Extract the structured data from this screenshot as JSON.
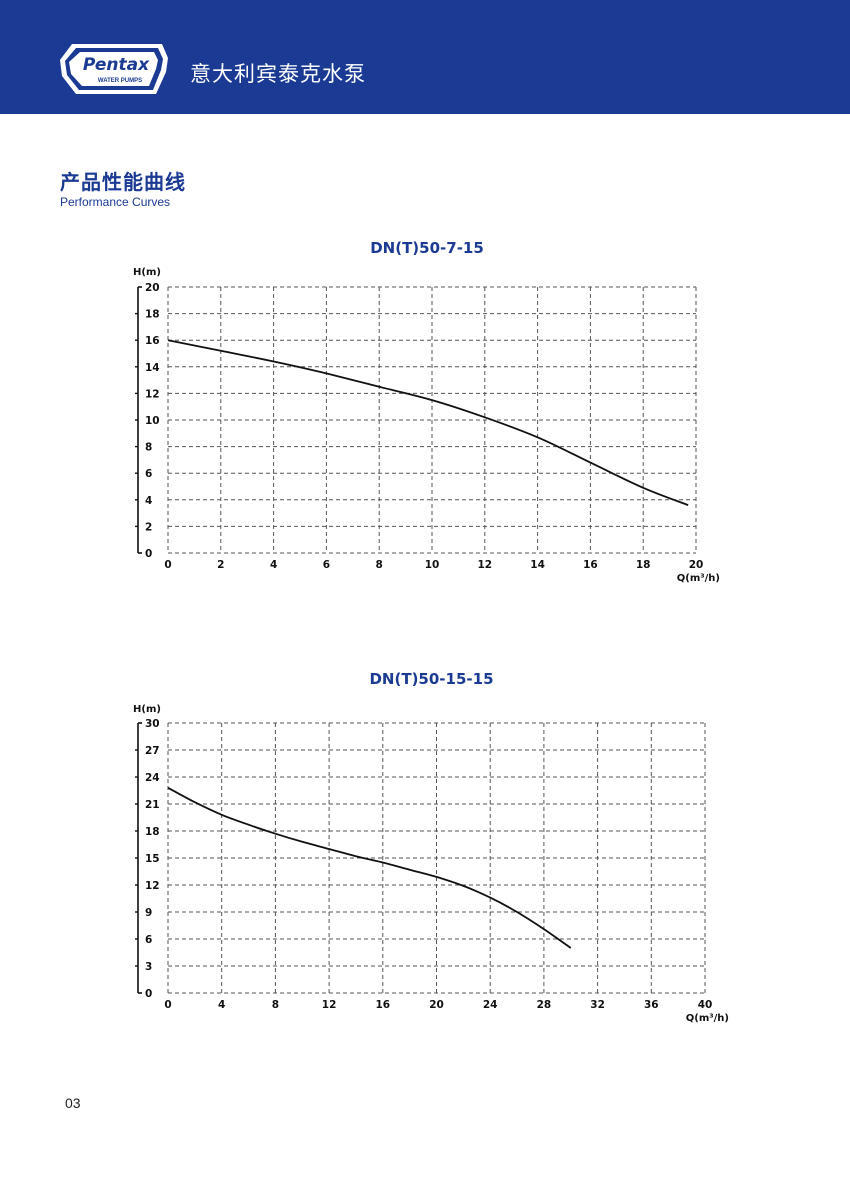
{
  "header": {
    "brand": "Pentax",
    "brand_sub": "WATER PUMPS",
    "title": "意大利宾泰克水泵",
    "bg_color": "#1b3a93",
    "logo_icon": "pentax-logo-icon"
  },
  "section": {
    "title": "产品性能曲线",
    "subtitle": "Performance Curves",
    "color": "#1b3a93"
  },
  "chart_data": [
    {
      "type": "line",
      "title": "DN(T)50-7-15",
      "xlabel": "Q(m³/h)",
      "ylabel": "H(m)",
      "xlim": [
        0,
        20
      ],
      "ylim": [
        0,
        20
      ],
      "xticks": [
        0,
        2,
        4,
        6,
        8,
        10,
        12,
        14,
        16,
        18,
        20
      ],
      "yticks": [
        0,
        2,
        4,
        6,
        8,
        10,
        12,
        14,
        16,
        18,
        20
      ],
      "grid": true,
      "series": [
        {
          "x": [
            0,
            2,
            4,
            6,
            8,
            10,
            12,
            14,
            16,
            18,
            19.7
          ],
          "values": [
            16,
            15.2,
            14.4,
            13.5,
            12.5,
            11.5,
            10.2,
            8.7,
            6.8,
            4.9,
            3.6
          ]
        }
      ]
    },
    {
      "type": "line",
      "title": "DN(T)50-15-15",
      "xlabel": "Q(m³/h)",
      "ylabel": "H(m)",
      "xlim": [
        0,
        40
      ],
      "ylim": [
        0,
        30
      ],
      "xticks": [
        0,
        4,
        8,
        12,
        16,
        20,
        24,
        28,
        32,
        36,
        40
      ],
      "yticks": [
        0,
        3,
        6,
        9,
        12,
        15,
        18,
        21,
        24,
        27,
        30
      ],
      "grid": true,
      "series": [
        {
          "x": [
            0,
            2,
            4,
            6,
            8,
            10,
            12,
            14,
            16,
            18,
            20,
            22,
            24,
            26,
            28,
            30
          ],
          "values": [
            22.8,
            21.2,
            19.8,
            18.7,
            17.7,
            16.8,
            16.0,
            15.2,
            14.5,
            13.7,
            12.9,
            11.9,
            10.6,
            9.0,
            7.1,
            5.0
          ]
        }
      ]
    }
  ],
  "footer": {
    "page_number": "03"
  }
}
